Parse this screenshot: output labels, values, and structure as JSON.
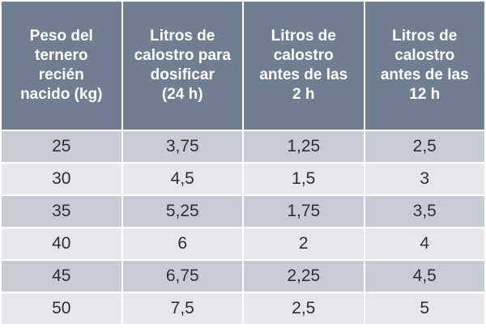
{
  "table": {
    "header": [
      [
        "Peso del",
        "ternero",
        "recién",
        "nacido (kg)"
      ],
      [
        "Litros de",
        "calostro para",
        "dosificar",
        "(24 h)"
      ],
      [
        "Litros de",
        "calostro",
        "antes de las",
        "2 h"
      ],
      [
        "Litros de",
        "calostro",
        "antes de las",
        "12 h"
      ]
    ],
    "rows": [
      [
        "25",
        "3,75",
        "1,25",
        "2,5"
      ],
      [
        "30",
        "4,5",
        "1,5",
        "3"
      ],
      [
        "35",
        "5,25",
        "1,75",
        "3,5"
      ],
      [
        "40",
        "6",
        "2",
        "4"
      ],
      [
        "45",
        "6,75",
        "2,25",
        "4,5"
      ],
      [
        "50",
        "7,5",
        "2,5",
        "5"
      ]
    ]
  }
}
